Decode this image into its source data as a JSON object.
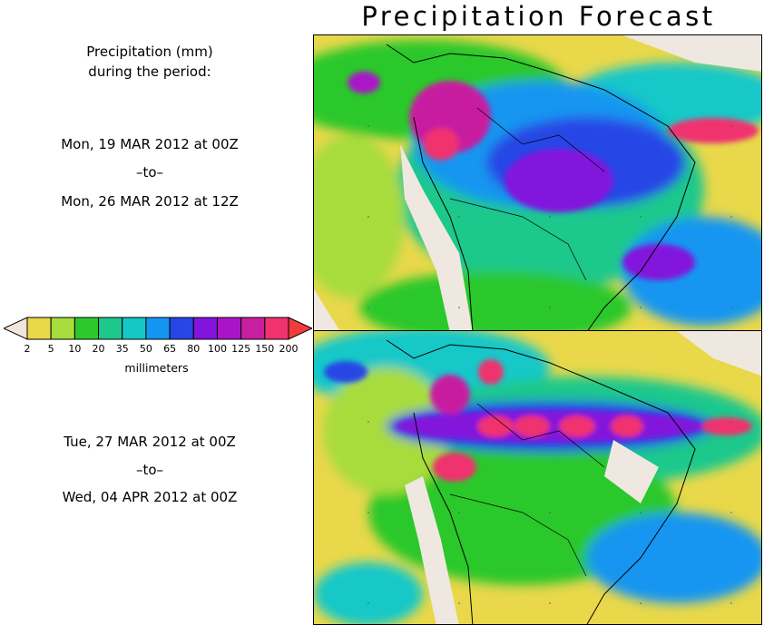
{
  "header": {
    "title": "Precipitation Forecast"
  },
  "legend_text": {
    "line1": "Precipitation (mm)",
    "line2": "during the period:"
  },
  "periods": [
    {
      "start": "Mon, 19 MAR 2012 at 00Z",
      "sep": "–to–",
      "end": "Mon, 26 MAR 2012 at 12Z"
    },
    {
      "start": "Tue, 27 MAR 2012 at 00Z",
      "sep": "–to–",
      "end": "Wed, 04 APR 2012 at 00Z"
    }
  ],
  "colorbar": {
    "ticks": [
      "2",
      "5",
      "10",
      "20",
      "35",
      "50",
      "65",
      "80",
      "100",
      "125",
      "150",
      "200"
    ],
    "colors": [
      "#e8d84a",
      "#a8dc3c",
      "#2cc82c",
      "#1ec88c",
      "#14c8c8",
      "#1496f0",
      "#2846e6",
      "#8214dc",
      "#aa14c8",
      "#c81ea0",
      "#f0326e"
    ],
    "low_color": "#f0e6dc",
    "high_color": "#f03c3c",
    "unit": "millimeters"
  },
  "colors": {
    "land": "#efe8e0",
    "ocean_base": "#e8d84a"
  }
}
